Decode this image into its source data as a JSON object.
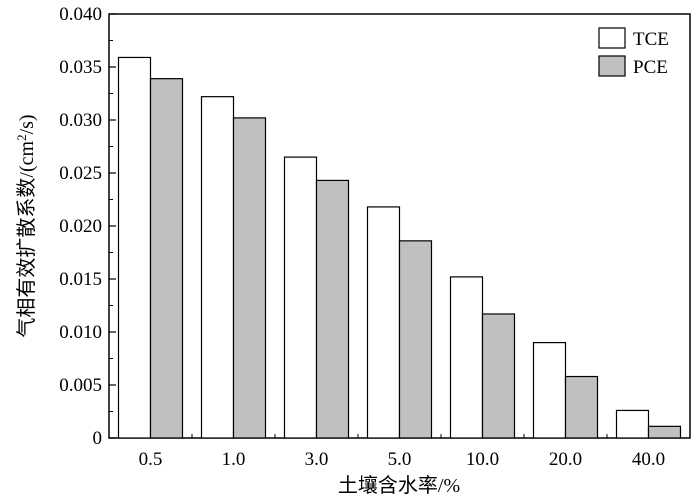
{
  "chart_data": {
    "type": "bar",
    "title": "",
    "xlabel": "土壤含水率/%",
    "ylabel_main": "气相有效扩散系数/(cm",
    "ylabel_sup": "2",
    "ylabel_tail": "/s)",
    "categories": [
      "0.5",
      "1.0",
      "3.0",
      "5.0",
      "10.0",
      "20.0",
      "40.0"
    ],
    "series": [
      {
        "name": "TCE",
        "color": "#ffffff",
        "values": [
          0.0359,
          0.0322,
          0.0265,
          0.0218,
          0.0152,
          0.009,
          0.0026
        ]
      },
      {
        "name": "PCE",
        "color": "#c0c0c0",
        "values": [
          0.0339,
          0.0302,
          0.0243,
          0.0186,
          0.0117,
          0.0058,
          0.0011
        ]
      }
    ],
    "ylim": [
      0,
      0.04
    ],
    "yticks": [
      "0",
      "0.005",
      "0.010",
      "0.015",
      "0.020",
      "0.025",
      "0.030",
      "0.035",
      "0.040"
    ],
    "ytick_values": [
      0,
      0.005,
      0.01,
      0.015,
      0.02,
      0.025,
      0.03,
      0.035,
      0.04
    ],
    "legend_position": "top-right",
    "grid": false
  }
}
